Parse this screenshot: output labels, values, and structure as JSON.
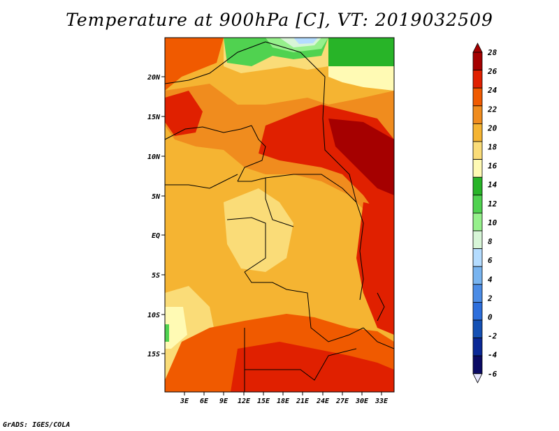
{
  "title": "Temperature at 900hPa [C], VT: 2019032509",
  "credit": "GrADS: IGES/COLA",
  "map": {
    "lat_labels": [
      "20N",
      "15N",
      "10N",
      "5N",
      "EQ",
      "5S",
      "10S",
      "15S"
    ],
    "lon_labels": [
      "3E",
      "6E",
      "9E",
      "12E",
      "15E",
      "18E",
      "21E",
      "24E",
      "27E",
      "30E",
      "33E"
    ]
  },
  "colorbar": {
    "labels": [
      "28",
      "26",
      "24",
      "22",
      "20",
      "18",
      "16",
      "14",
      "12",
      "10",
      "8",
      "6",
      "4",
      "2",
      "0",
      "-2",
      "-4",
      "-6"
    ],
    "colors": [
      "#a50000",
      "#e02000",
      "#f05a00",
      "#f08c1e",
      "#f5b432",
      "#fadc78",
      "#fffab4",
      "#28b428",
      "#50d250",
      "#96f08c",
      "#d7f5d7",
      "#b4dcff",
      "#78b4f0",
      "#4b8ce6",
      "#2d6edc",
      "#1450b4",
      "#0a2896",
      "#0a0a64"
    ],
    "under_color": "#e6e6ff"
  }
}
